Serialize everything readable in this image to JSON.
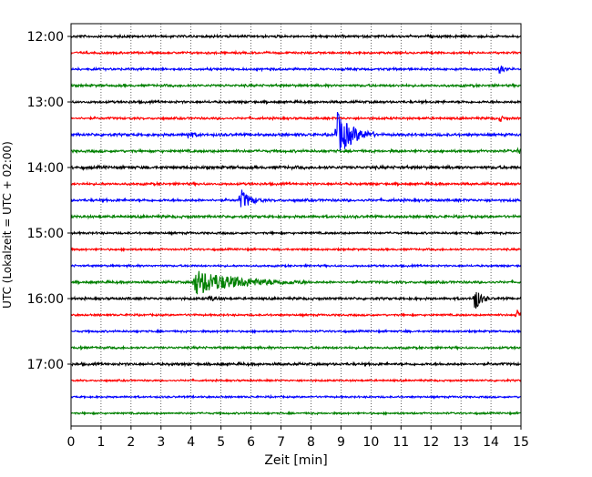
{
  "chart_data": {
    "type": "line",
    "subtype": "helicorder-seismogram",
    "xlabel": "Zeit  [min]",
    "ylabel": "UTC (Lokalzeit = UTC + 02:00)",
    "xlim": [
      0,
      15
    ],
    "x_ticks": [
      "0",
      "1",
      "2",
      "3",
      "4",
      "5",
      "6",
      "7",
      "8",
      "9",
      "10",
      "11",
      "12",
      "13",
      "14",
      "15"
    ],
    "y_ticks": [
      "12:00",
      "13:00",
      "14:00",
      "15:00",
      "16:00",
      "17:00"
    ],
    "row_interval_minutes": 15,
    "grid": "vertical-dotted",
    "colors_cycle": [
      "#000000",
      "#ff0000",
      "#0000ff",
      "#008000"
    ],
    "rows": [
      {
        "time": "12:00",
        "noise": 1.6,
        "events": []
      },
      {
        "time": "12:15",
        "noise": 1.4,
        "events": []
      },
      {
        "time": "12:30",
        "noise": 1.5,
        "events": [
          {
            "minute": 14.3,
            "amp": 6,
            "duration": 0.3
          }
        ]
      },
      {
        "time": "12:45",
        "noise": 1.6,
        "events": []
      },
      {
        "time": "13:00",
        "noise": 1.6,
        "events": []
      },
      {
        "time": "13:15",
        "noise": 1.5,
        "events": [
          {
            "minute": 14.3,
            "amp": 4,
            "duration": 0.2
          }
        ]
      },
      {
        "time": "13:30",
        "noise": 1.8,
        "events": [
          {
            "minute": 3.9,
            "amp": 4,
            "duration": 0.5
          },
          {
            "minute": 8.85,
            "amp": 26,
            "duration": 1.3
          }
        ]
      },
      {
        "time": "13:45",
        "noise": 1.7,
        "events": [
          {
            "minute": 14.9,
            "amp": 4,
            "duration": 0.2
          }
        ]
      },
      {
        "time": "14:00",
        "noise": 2.0,
        "events": []
      },
      {
        "time": "14:15",
        "noise": 1.6,
        "events": []
      },
      {
        "time": "14:30",
        "noise": 1.7,
        "events": [
          {
            "minute": 5.65,
            "amp": 12,
            "duration": 0.8
          }
        ]
      },
      {
        "time": "14:45",
        "noise": 1.7,
        "events": []
      },
      {
        "time": "15:00",
        "noise": 1.4,
        "events": []
      },
      {
        "time": "15:15",
        "noise": 1.3,
        "events": []
      },
      {
        "time": "15:30",
        "noise": 1.3,
        "events": []
      },
      {
        "time": "15:45",
        "noise": 1.6,
        "events": [
          {
            "minute": 4.1,
            "amp": 14,
            "duration": 3.8
          }
        ]
      },
      {
        "time": "16:00",
        "noise": 1.6,
        "events": [
          {
            "minute": 4.6,
            "amp": 3,
            "duration": 0.6
          },
          {
            "minute": 13.45,
            "amp": 15,
            "duration": 0.5
          }
        ]
      },
      {
        "time": "16:15",
        "noise": 1.3,
        "events": [
          {
            "minute": 14.85,
            "amp": 8,
            "duration": 0.2
          }
        ]
      },
      {
        "time": "16:30",
        "noise": 1.3,
        "events": [
          {
            "minute": 11.2,
            "amp": 3,
            "duration": 0.1
          }
        ]
      },
      {
        "time": "16:45",
        "noise": 1.5,
        "events": [
          {
            "minute": 0.3,
            "amp": 4,
            "duration": 0.1
          }
        ]
      },
      {
        "time": "17:00",
        "noise": 1.7,
        "events": []
      },
      {
        "time": "17:15",
        "noise": 1.2,
        "events": []
      },
      {
        "time": "17:30",
        "noise": 1.2,
        "events": []
      },
      {
        "time": "17:45",
        "noise": 1.2,
        "events": []
      }
    ]
  }
}
